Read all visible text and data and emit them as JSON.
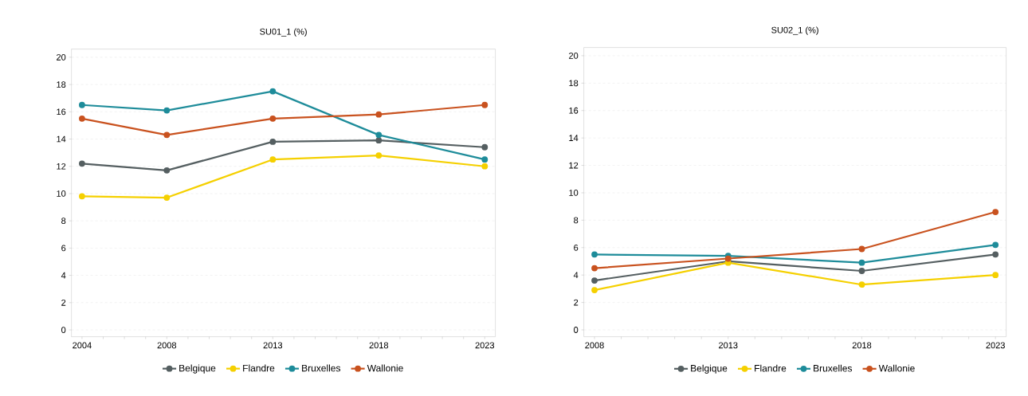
{
  "chart_data": [
    {
      "type": "line",
      "title": "SU01_1 (%)",
      "x": [
        2004,
        2008,
        2013,
        2018,
        2023
      ],
      "xlim": [
        2003.5,
        2023.5
      ],
      "xticks": [
        2004,
        {
          "value": 2005,
          "label": null
        },
        {
          "value": 2006,
          "label": null
        },
        {
          "value": 2007,
          "label": null
        },
        2008,
        {
          "value": 2009,
          "label": null
        },
        {
          "value": 2010,
          "label": null
        },
        {
          "value": 2011,
          "label": null
        },
        {
          "value": 2012,
          "label": null
        },
        2013,
        {
          "value": 2014,
          "label": null
        },
        {
          "value": 2015,
          "label": null
        },
        {
          "value": 2016,
          "label": null
        },
        {
          "value": 2017,
          "label": null
        },
        2018,
        {
          "value": 2019,
          "label": null
        },
        {
          "value": 2020,
          "label": null
        },
        {
          "value": 2021,
          "label": null
        },
        {
          "value": 2022,
          "label": null
        },
        2023
      ],
      "ylim": [
        -0.5,
        20.6
      ],
      "yticks": [
        0,
        2,
        4,
        6,
        8,
        10,
        12,
        14,
        16,
        18,
        20
      ],
      "grid": "y",
      "legend": "bottom",
      "marker": "circle",
      "series": [
        {
          "name": "Belgique",
          "color": "#555f61",
          "values": [
            12.2,
            11.7,
            13.8,
            13.9,
            13.4
          ]
        },
        {
          "name": "Flandre",
          "color": "#f5d000",
          "values": [
            9.8,
            9.7,
            12.5,
            12.8,
            12.0
          ]
        },
        {
          "name": "Bruxelles",
          "color": "#1e8c9a",
          "values": [
            16.5,
            16.1,
            17.5,
            14.3,
            12.5
          ]
        },
        {
          "name": "Wallonie",
          "color": "#c9521f",
          "values": [
            15.5,
            14.3,
            15.5,
            15.8,
            16.5
          ]
        }
      ]
    },
    {
      "type": "line",
      "title": "SU02_1 (%)",
      "x": [
        2008,
        2013,
        2018,
        2023
      ],
      "xlim": [
        2007.6,
        2023.4
      ],
      "xticks": [
        2008,
        {
          "value": 2009,
          "label": null
        },
        {
          "value": 2010,
          "label": null
        },
        {
          "value": 2011,
          "label": null
        },
        {
          "value": 2012,
          "label": null
        },
        2013,
        {
          "value": 2014,
          "label": null
        },
        {
          "value": 2015,
          "label": null
        },
        {
          "value": 2016,
          "label": null
        },
        {
          "value": 2017,
          "label": null
        },
        2018,
        {
          "value": 2019,
          "label": null
        },
        {
          "value": 2020,
          "label": null
        },
        {
          "value": 2021,
          "label": null
        },
        {
          "value": 2022,
          "label": null
        },
        2023
      ],
      "ylim": [
        -0.5,
        20.6
      ],
      "yticks": [
        0,
        2,
        4,
        6,
        8,
        10,
        12,
        14,
        16,
        18,
        20
      ],
      "grid": "y",
      "legend": "bottom",
      "marker": "circle",
      "series": [
        {
          "name": "Belgique",
          "color": "#555f61",
          "values": [
            3.6,
            5.0,
            4.3,
            5.5
          ]
        },
        {
          "name": "Flandre",
          "color": "#f5d000",
          "values": [
            2.9,
            4.9,
            3.3,
            4.0
          ]
        },
        {
          "name": "Bruxelles",
          "color": "#1e8c9a",
          "values": [
            5.5,
            5.4,
            4.9,
            6.2
          ]
        },
        {
          "name": "Wallonie",
          "color": "#c9521f",
          "values": [
            4.5,
            5.2,
            5.9,
            8.6
          ]
        }
      ]
    }
  ]
}
